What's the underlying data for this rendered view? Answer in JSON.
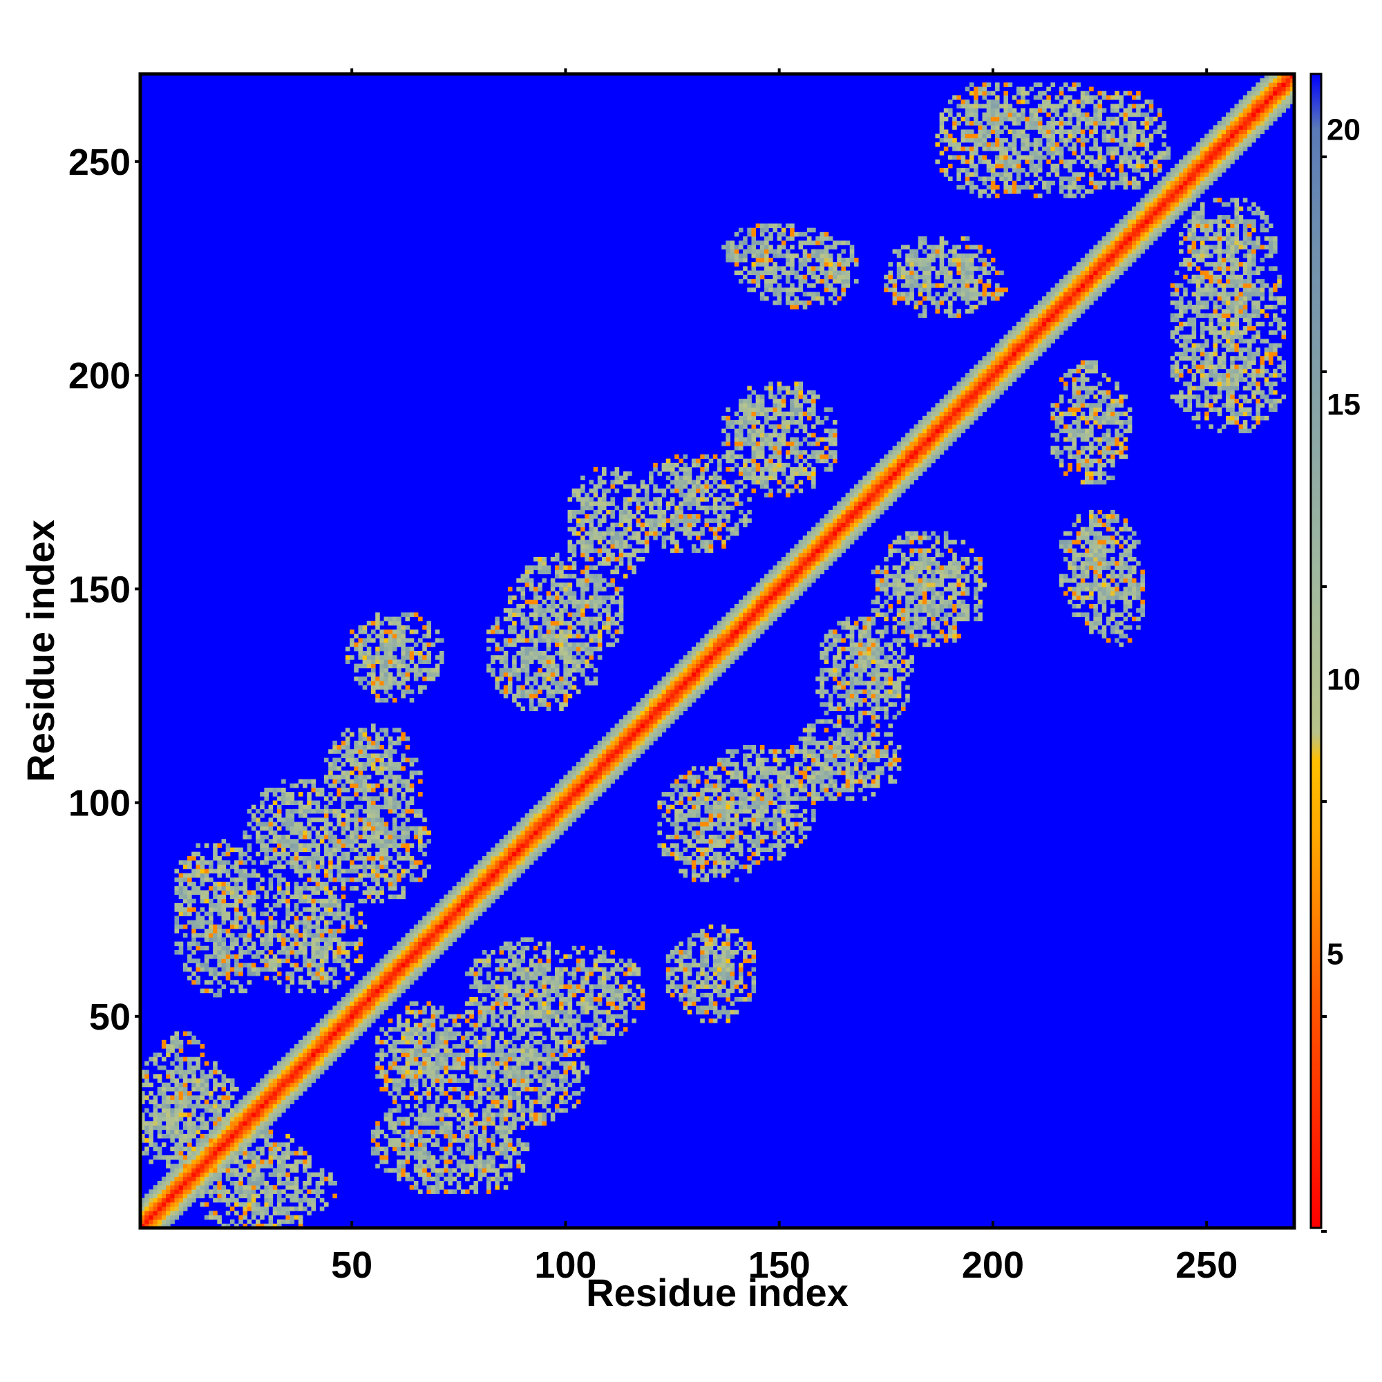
{
  "chart_data": {
    "type": "heatmap",
    "title": "",
    "xlabel": "Residue index",
    "ylabel": "Residue index",
    "n_residues": 270,
    "xlim": [
      1,
      270
    ],
    "ylim": [
      1,
      270
    ],
    "x_ticks": [
      50,
      100,
      150,
      200,
      250
    ],
    "y_ticks": [
      50,
      100,
      150,
      200,
      250
    ],
    "colorbar": {
      "ticks": [
        5,
        10,
        15,
        20
      ],
      "range": [
        0,
        21
      ],
      "colors": [
        {
          "value": 0,
          "color": "#ff0000"
        },
        {
          "value": 4,
          "color": "#ff5500"
        },
        {
          "value": 7,
          "color": "#ffa500"
        },
        {
          "value": 8.5,
          "color": "#ffc000"
        },
        {
          "value": 9,
          "color": "#b8c48a"
        },
        {
          "value": 12,
          "color": "#9fb8a0"
        },
        {
          "value": 18,
          "color": "#7090b0"
        },
        {
          "value": 20,
          "color": "#5a7ab8"
        },
        {
          "value": 21,
          "color": "#0000ff"
        }
      ]
    },
    "background_value": 21,
    "background_color": "#0000ff",
    "diagonal_band": {
      "center_value": 1,
      "edge_value": 14,
      "half_width": 6
    },
    "contact_clusters": [
      {
        "x": 28,
        "y": 10,
        "rx": 14,
        "ry": 14,
        "value": 12,
        "symmetric": true
      },
      {
        "x": 10,
        "y": 35,
        "rx": 7,
        "ry": 12,
        "value": 12,
        "symmetric": true
      },
      {
        "x": 20,
        "y": 72,
        "rx": 12,
        "ry": 18,
        "value": 13,
        "symmetric": true
      },
      {
        "x": 38,
        "y": 90,
        "rx": 14,
        "ry": 16,
        "value": 12,
        "symmetric": true
      },
      {
        "x": 55,
        "y": 105,
        "rx": 12,
        "ry": 14,
        "value": 12,
        "symmetric": true
      },
      {
        "x": 68,
        "y": 40,
        "rx": 13,
        "ry": 14,
        "value": 12,
        "symmetric": true
      },
      {
        "x": 80,
        "y": 20,
        "rx": 12,
        "ry": 12,
        "value": 12,
        "symmetric": true
      },
      {
        "x": 90,
        "y": 55,
        "rx": 14,
        "ry": 14,
        "value": 12,
        "symmetric": true
      },
      {
        "x": 60,
        "y": 133,
        "rx": 10,
        "ry": 10,
        "value": 13,
        "symmetric": true
      },
      {
        "x": 95,
        "y": 135,
        "rx": 14,
        "ry": 14,
        "value": 12,
        "symmetric": true
      },
      {
        "x": 110,
        "y": 165,
        "rx": 10,
        "ry": 14,
        "value": 12,
        "symmetric": true
      },
      {
        "x": 130,
        "y": 170,
        "rx": 14,
        "ry": 12,
        "value": 12,
        "symmetric": true
      },
      {
        "x": 150,
        "y": 185,
        "rx": 14,
        "ry": 14,
        "value": 12,
        "symmetric": true
      },
      {
        "x": 135,
        "y": 60,
        "rx": 10,
        "ry": 12,
        "value": 12,
        "symmetric": true
      },
      {
        "x": 150,
        "y": 228,
        "rx": 14,
        "ry": 8,
        "value": 13,
        "symmetric": true
      },
      {
        "x": 188,
        "y": 223,
        "rx": 14,
        "ry": 10,
        "value": 12,
        "symmetric": true
      },
      {
        "x": 200,
        "y": 255,
        "rx": 14,
        "ry": 14,
        "value": 12,
        "symmetric": true
      },
      {
        "x": 230,
        "y": 255,
        "rx": 12,
        "ry": 12,
        "value": 12,
        "symmetric": true
      },
      {
        "x": 222,
        "y": 190,
        "rx": 8,
        "ry": 14,
        "value": 12,
        "symmetric": true
      },
      {
        "x": 225,
        "y": 155,
        "rx": 10,
        "ry": 14,
        "value": 12,
        "symmetric": true
      },
      {
        "x": 255,
        "y": 215,
        "rx": 14,
        "ry": 18,
        "value": 12,
        "symmetric": true
      },
      {
        "x": 145,
        "y": 100,
        "rx": 14,
        "ry": 14,
        "value": 12,
        "symmetric": true
      }
    ]
  }
}
